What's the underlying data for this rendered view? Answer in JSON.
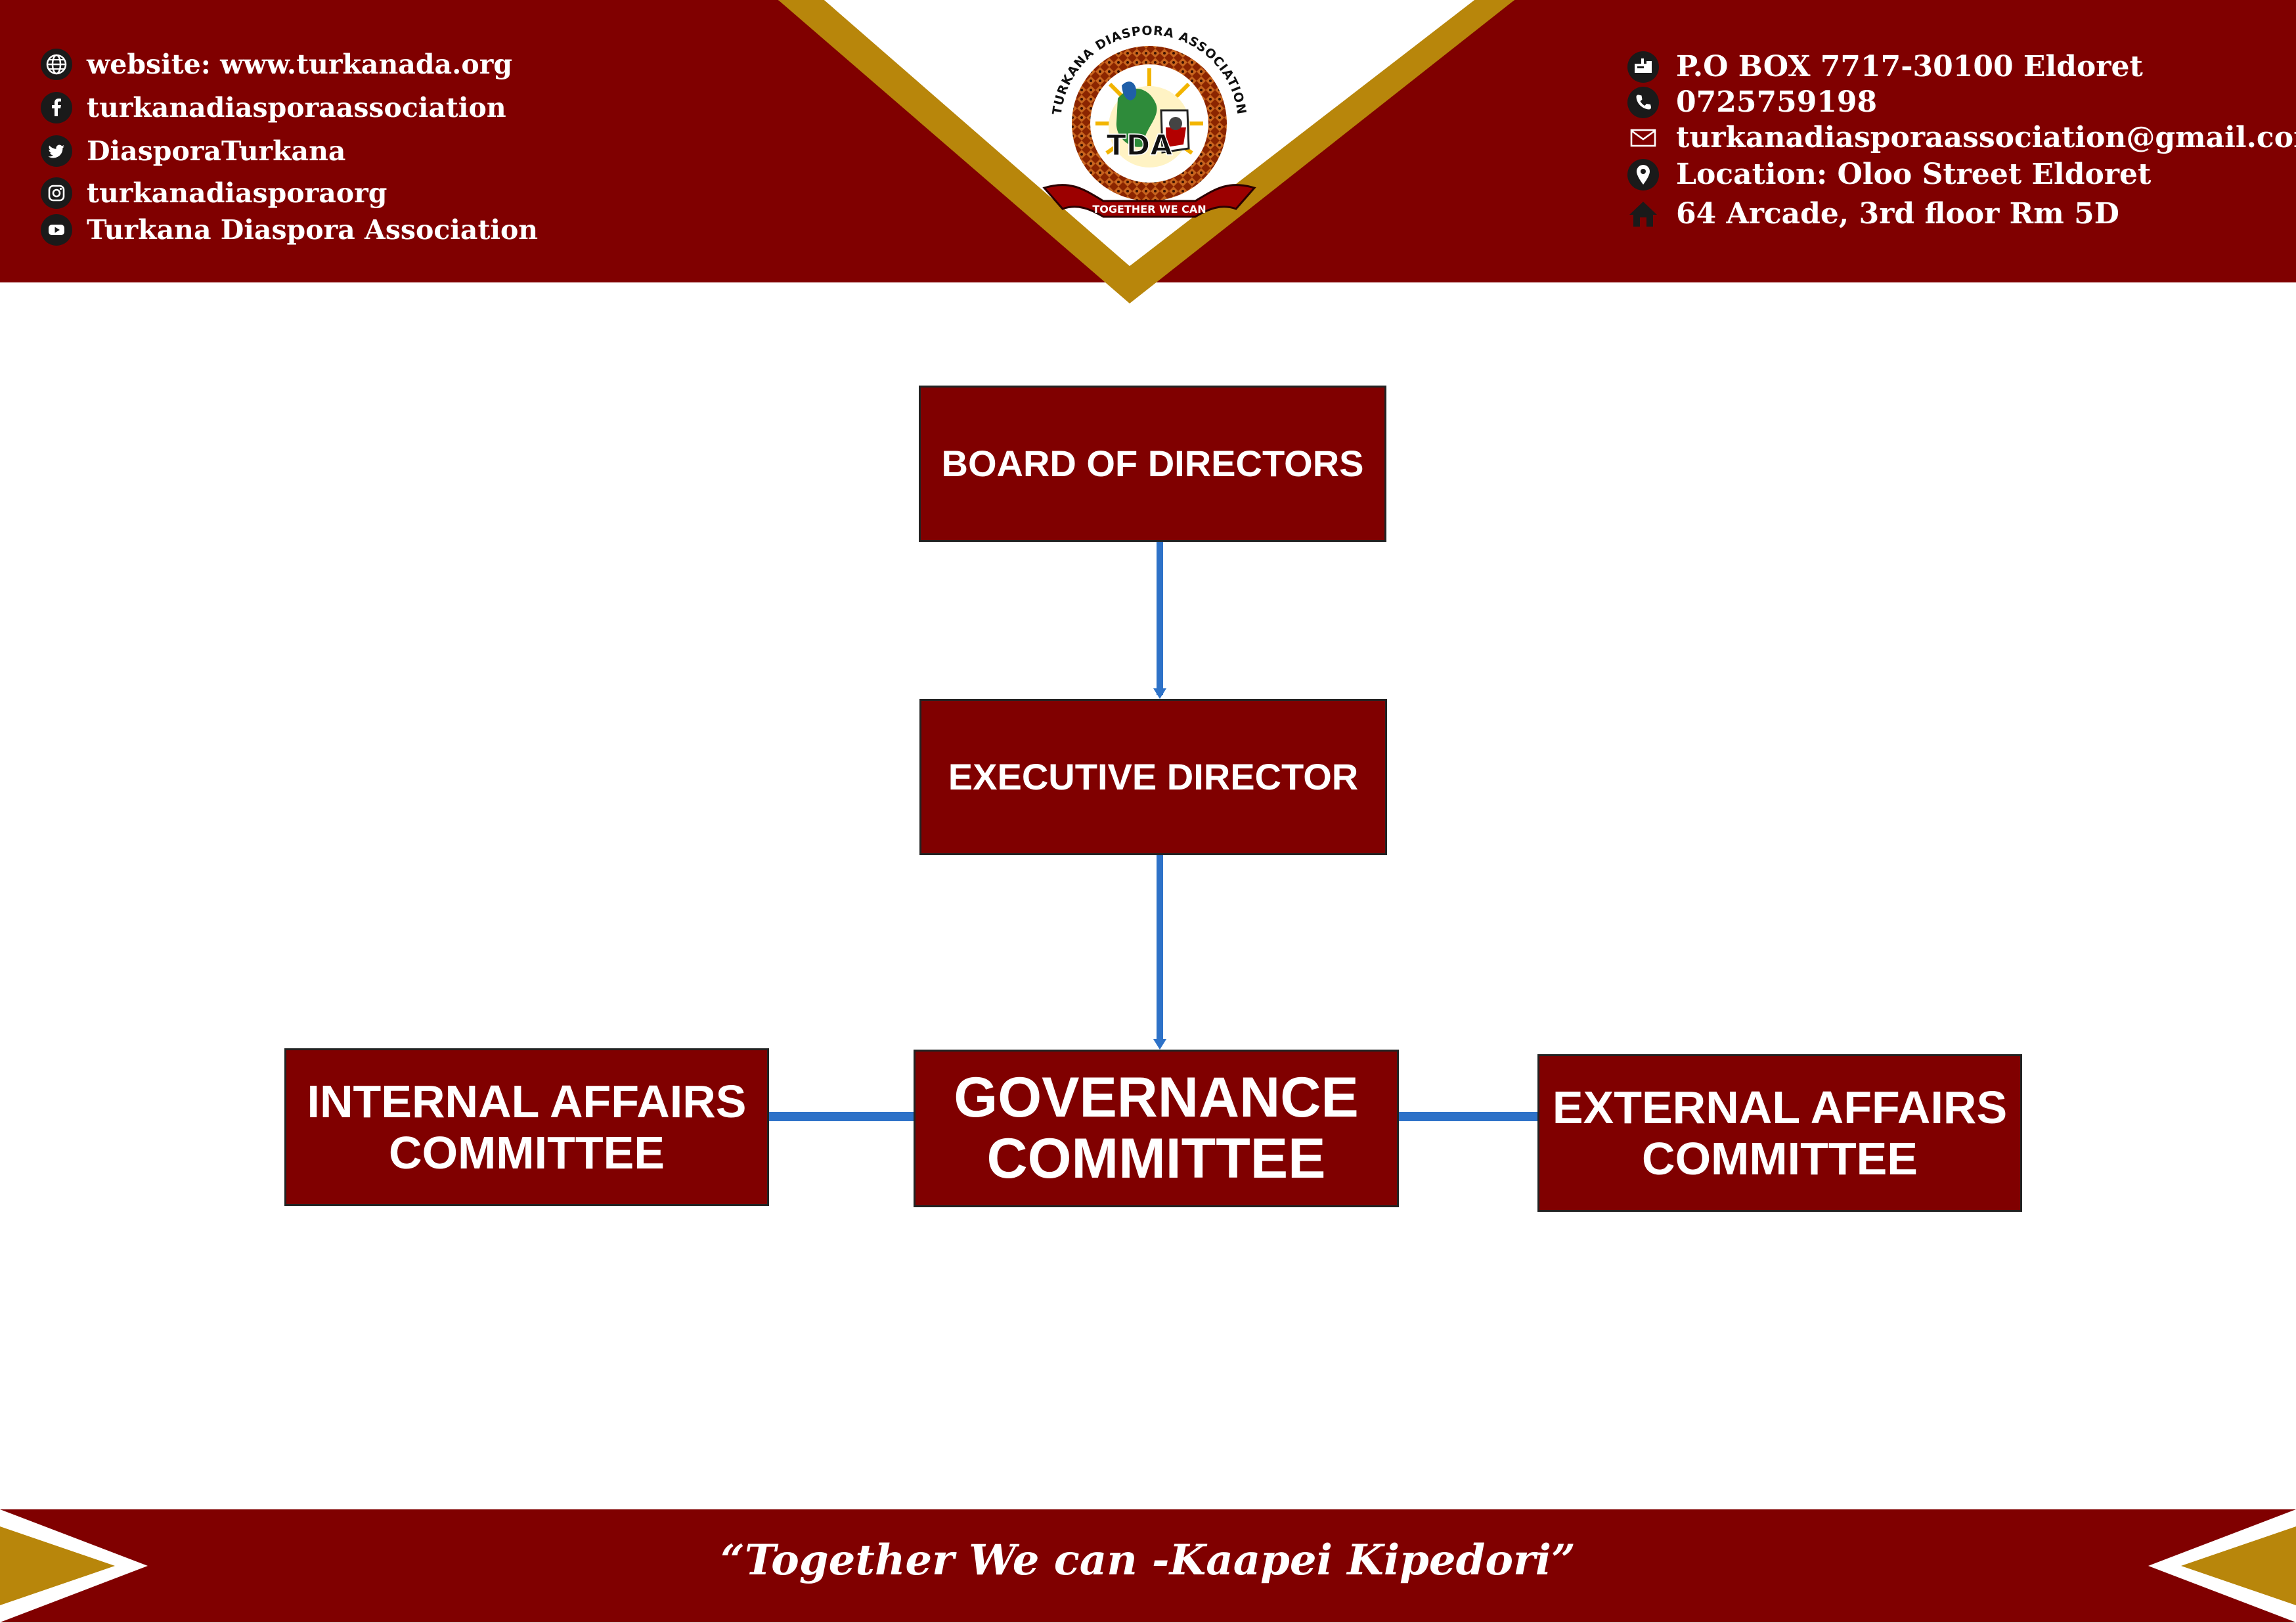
{
  "header": {
    "left_contacts": [
      {
        "icon": "globe-icon",
        "text": "website: www.turkanada.org"
      },
      {
        "icon": "facebook-icon",
        "text": "turkanadiasporaassociation"
      },
      {
        "icon": "twitter-icon",
        "text": "DiasporaTurkana"
      },
      {
        "icon": "instagram-icon",
        "text": "turkanadiasporaorg"
      },
      {
        "icon": "youtube-icon",
        "text": "Turkana Diaspora Association"
      }
    ],
    "right_contacts": [
      {
        "icon": "postbox-icon",
        "text": "P.O BOX 7717-30100 Eldoret"
      },
      {
        "icon": "phone-icon",
        "text": "0725759198"
      },
      {
        "icon": "email-icon",
        "text": "turkanadiasporaassociation@gmail.com"
      },
      {
        "icon": "location-pin-icon",
        "text": "Location: Oloo Street Eldoret"
      },
      {
        "icon": "home-icon",
        "text": "64 Arcade, 3rd floor Rm 5D"
      }
    ]
  },
  "logo": {
    "ring_text": "TURKANA DIASPORA ASSOCIATION",
    "initials": "TDA",
    "ribbon_text": "TOGETHER WE CAN"
  },
  "org_chart": {
    "nodes": {
      "board": "BOARD OF DIRECTORS",
      "executive": "EXECUTIVE DIRECTOR",
      "internal_line1": "INTERNAL AFFAIRS",
      "internal_line2": "COMMITTEE",
      "governance_line1": "GOVERNANCE",
      "governance_line2": "COMMITTEE",
      "external_line1": "EXTERNAL AFFAIRS",
      "external_line2": "COMMITTEE"
    },
    "edges": [
      {
        "from": "BOARD OF DIRECTORS",
        "to": "EXECUTIVE DIRECTOR"
      },
      {
        "from": "EXECUTIVE DIRECTOR",
        "to": "GOVERNANCE COMMITTEE"
      },
      {
        "from": "GOVERNANCE COMMITTEE",
        "to": "INTERNAL AFFAIRS COMMITTEE"
      },
      {
        "from": "GOVERNANCE COMMITTEE",
        "to": "EXTERNAL AFFAIRS COMMITTEE"
      }
    ]
  },
  "footer": {
    "slogan": "“Together We can -Kaapei Kipedori”"
  },
  "colors": {
    "maroon": "#800000",
    "gold": "#b8860b",
    "connector_blue": "#2e72c8",
    "white": "#ffffff"
  }
}
